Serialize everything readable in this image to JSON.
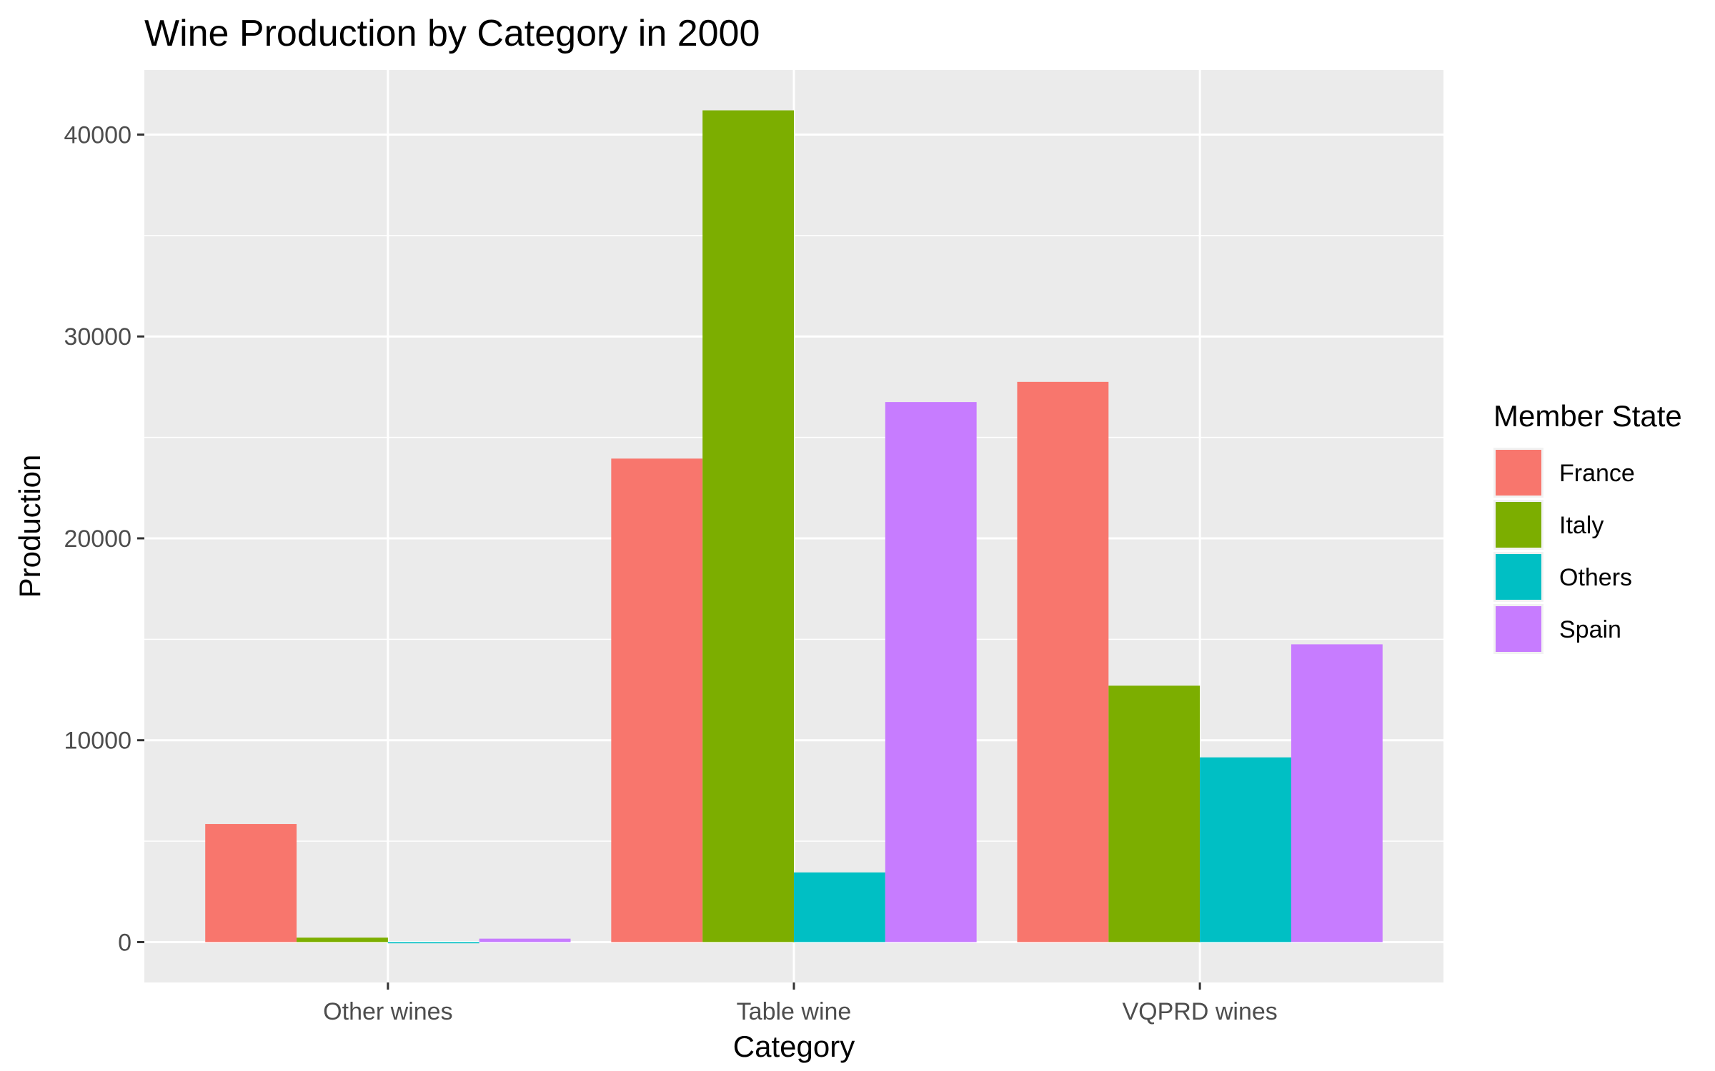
{
  "chart_data": {
    "type": "bar",
    "title": "Wine Production by Category in 2000",
    "xlabel": "Category",
    "ylabel": "Production",
    "categories": [
      "Other wines",
      "Table wine",
      "VQPRD wines"
    ],
    "series": [
      {
        "name": "France",
        "color": "#F8766D",
        "values": [
          5850,
          23950,
          27750
        ]
      },
      {
        "name": "Italy",
        "color": "#7CAE00",
        "values": [
          220,
          41200,
          12700
        ]
      },
      {
        "name": "Others",
        "color": "#00BFC4",
        "values": [
          -60,
          3450,
          9150
        ]
      },
      {
        "name": "Spain",
        "color": "#C77CFF",
        "values": [
          170,
          26750,
          14750
        ]
      }
    ],
    "ylim": [
      -2000,
      43200
    ],
    "y_ticks": [
      0,
      10000,
      20000,
      30000,
      40000
    ],
    "y_tick_labels": [
      "0",
      "10000",
      "20000",
      "30000",
      "40000"
    ],
    "legend": {
      "title": "Member State",
      "position": "right"
    },
    "grid": true,
    "colors": {
      "panel": "#EBEBEB",
      "grid_major": "#FFFFFF"
    }
  }
}
